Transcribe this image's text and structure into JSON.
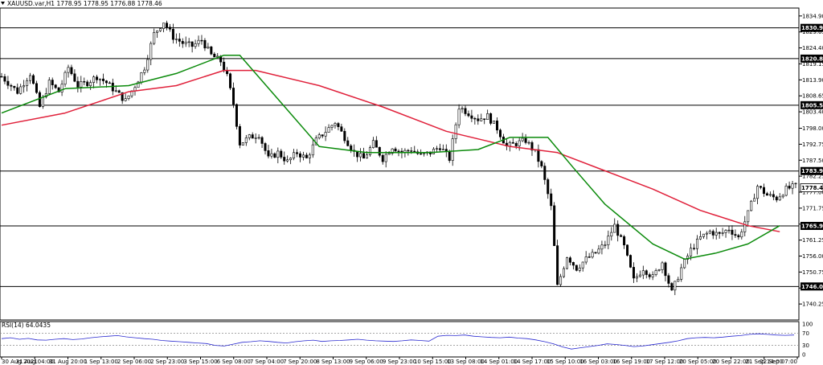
{
  "header": {
    "symbol_line": "XAUUSD.var,H1  1778.95 1778.95 1776.88 1778.46",
    "rsi_label": "RSI(14) 64.0435"
  },
  "colors": {
    "candle_bull": "#000000",
    "candle_bear": "#000000",
    "ma_fast": "#0a8a0a",
    "ma_slow": "#e0203a",
    "rsi_line": "#2a2ad0",
    "hline": "#000000",
    "current_tag_bg": "#ffffff",
    "level_tag_bg": "#000000"
  },
  "chart_data": {
    "type": "candlestick",
    "price_axis": {
      "min": 1735.0,
      "max": 1837.5,
      "ticks": [
        "1834.90",
        "1829.65",
        "1824.40",
        "1819.15",
        "1813.90",
        "1808.65",
        "1803.40",
        "1798.00",
        "1792.75",
        "1787.50",
        "1782.25",
        "1777.00",
        "1771.75",
        "1766.50",
        "1761.25",
        "1756.00",
        "1750.75",
        "1745.50",
        "1740.25"
      ]
    },
    "horizontal_levels": [
      1830.98,
      1820.88,
      1805.58,
      1783.94,
      1765.91,
      1746.01
    ],
    "current_price": 1778.46,
    "time_axis": [
      "30 Aug 2021",
      "31 Aug 04:00",
      "31 Aug 20:00",
      "1 Sep 13:00",
      "2 Sep 06:00",
      "2 Sep 23:00",
      "3 Sep 15:00",
      "6 Sep 08:00",
      "7 Sep 04:00",
      "7 Sep 20:00",
      "8 Sep 13:00",
      "9 Sep 06:00",
      "9 Sep 23:00",
      "10 Sep 15:00",
      "13 Sep 08:00",
      "14 Sep 01:00",
      "14 Sep 17:00",
      "15 Sep 10:00",
      "16 Sep 03:00",
      "16 Sep 19:00",
      "17 Sep 12:00",
      "20 Sep 05:00",
      "20 Sep 22:00",
      "21 Sep 14:00",
      "22 Sep 07:00"
    ],
    "price_path": [
      [
        0,
        1815
      ],
      [
        5,
        1810
      ],
      [
        9,
        1816
      ],
      [
        12,
        1805
      ],
      [
        15,
        1813
      ],
      [
        18,
        1810
      ],
      [
        21,
        1818
      ],
      [
        24,
        1812
      ],
      [
        27,
        1813
      ],
      [
        30,
        1815
      ],
      [
        33,
        1813
      ],
      [
        36,
        1810
      ],
      [
        39,
        1807
      ],
      [
        42,
        1812
      ],
      [
        45,
        1818
      ],
      [
        48,
        1829
      ],
      [
        51,
        1833
      ],
      [
        54,
        1828
      ],
      [
        57,
        1826
      ],
      [
        60,
        1825
      ],
      [
        63,
        1827
      ],
      [
        66,
        1822
      ],
      [
        69,
        1820
      ],
      [
        71,
        1815
      ],
      [
        73,
        1806
      ],
      [
        75,
        1793
      ],
      [
        78,
        1795
      ],
      [
        81,
        1796
      ],
      [
        84,
        1788
      ],
      [
        87,
        1790
      ],
      [
        90,
        1787
      ],
      [
        93,
        1790
      ],
      [
        96,
        1788
      ],
      [
        99,
        1794
      ],
      [
        102,
        1797
      ],
      [
        105,
        1800
      ],
      [
        108,
        1795
      ],
      [
        111,
        1790
      ],
      [
        114,
        1788
      ],
      [
        117,
        1793
      ],
      [
        120,
        1788
      ],
      [
        123,
        1792
      ],
      [
        126,
        1790
      ],
      [
        129,
        1791
      ],
      [
        132,
        1789
      ],
      [
        135,
        1790
      ],
      [
        138,
        1792
      ],
      [
        141,
        1788
      ],
      [
        144,
        1805
      ],
      [
        147,
        1803
      ],
      [
        150,
        1801
      ],
      [
        153,
        1802
      ],
      [
        156,
        1798
      ],
      [
        159,
        1792
      ],
      [
        162,
        1793
      ],
      [
        165,
        1794
      ],
      [
        168,
        1790
      ],
      [
        170,
        1785
      ],
      [
        173,
        1772
      ],
      [
        175,
        1746
      ],
      [
        178,
        1756
      ],
      [
        181,
        1752
      ],
      [
        184,
        1755
      ],
      [
        187,
        1757
      ],
      [
        190,
        1760
      ],
      [
        193,
        1766
      ],
      [
        196,
        1759
      ],
      [
        199,
        1748
      ],
      [
        202,
        1752
      ],
      [
        205,
        1749
      ],
      [
        208,
        1754
      ],
      [
        211,
        1744
      ],
      [
        214,
        1752
      ],
      [
        217,
        1758
      ],
      [
        220,
        1762
      ],
      [
        223,
        1764
      ],
      [
        226,
        1763
      ],
      [
        229,
        1765
      ],
      [
        232,
        1762
      ],
      [
        235,
        1770
      ],
      [
        238,
        1779
      ],
      [
        241,
        1776
      ],
      [
        244,
        1775
      ],
      [
        247,
        1778
      ],
      [
        250,
        1779
      ]
    ],
    "ma_fast": [
      [
        0,
        1803
      ],
      [
        20,
        1811
      ],
      [
        40,
        1812
      ],
      [
        55,
        1816
      ],
      [
        70,
        1822
      ],
      [
        75,
        1822
      ],
      [
        85,
        1810
      ],
      [
        100,
        1792
      ],
      [
        115,
        1790
      ],
      [
        135,
        1790
      ],
      [
        150,
        1791
      ],
      [
        160,
        1795
      ],
      [
        172,
        1795
      ],
      [
        180,
        1785
      ],
      [
        190,
        1773
      ],
      [
        205,
        1760
      ],
      [
        215,
        1755
      ],
      [
        225,
        1757
      ],
      [
        235,
        1760
      ],
      [
        245,
        1766
      ]
    ],
    "ma_slow": [
      [
        0,
        1799
      ],
      [
        20,
        1803
      ],
      [
        40,
        1810
      ],
      [
        55,
        1812
      ],
      [
        70,
        1817
      ],
      [
        80,
        1817
      ],
      [
        100,
        1812
      ],
      [
        120,
        1805
      ],
      [
        140,
        1797
      ],
      [
        160,
        1792
      ],
      [
        175,
        1790
      ],
      [
        190,
        1784
      ],
      [
        205,
        1778
      ],
      [
        220,
        1771
      ],
      [
        235,
        1766
      ],
      [
        245,
        1764
      ]
    ],
    "rsi": {
      "levels": [
        70,
        30
      ],
      "axis_ticks": [
        "100",
        "70",
        "30",
        "0"
      ],
      "values": [
        52,
        55,
        50,
        53,
        48,
        47,
        50,
        52,
        49,
        51,
        55,
        58,
        60,
        62,
        58,
        55,
        52,
        50,
        46,
        44,
        42,
        40,
        38,
        36,
        30,
        28,
        34,
        40,
        42,
        45,
        43,
        40,
        38,
        42,
        45,
        47,
        43,
        45,
        46,
        48,
        50,
        47,
        45,
        44,
        43,
        45,
        48,
        46,
        44,
        60,
        63,
        62,
        64,
        60,
        58,
        56,
        55,
        57,
        54,
        52,
        48,
        42,
        35,
        25,
        18,
        22,
        26,
        30,
        35,
        33,
        30,
        26,
        28,
        32,
        36,
        40,
        45,
        52,
        55,
        56,
        55,
        57,
        60,
        62,
        66,
        68,
        66,
        64,
        63,
        64
      ]
    },
    "price_range_display": [
      1735.0,
      1837.5
    ]
  }
}
